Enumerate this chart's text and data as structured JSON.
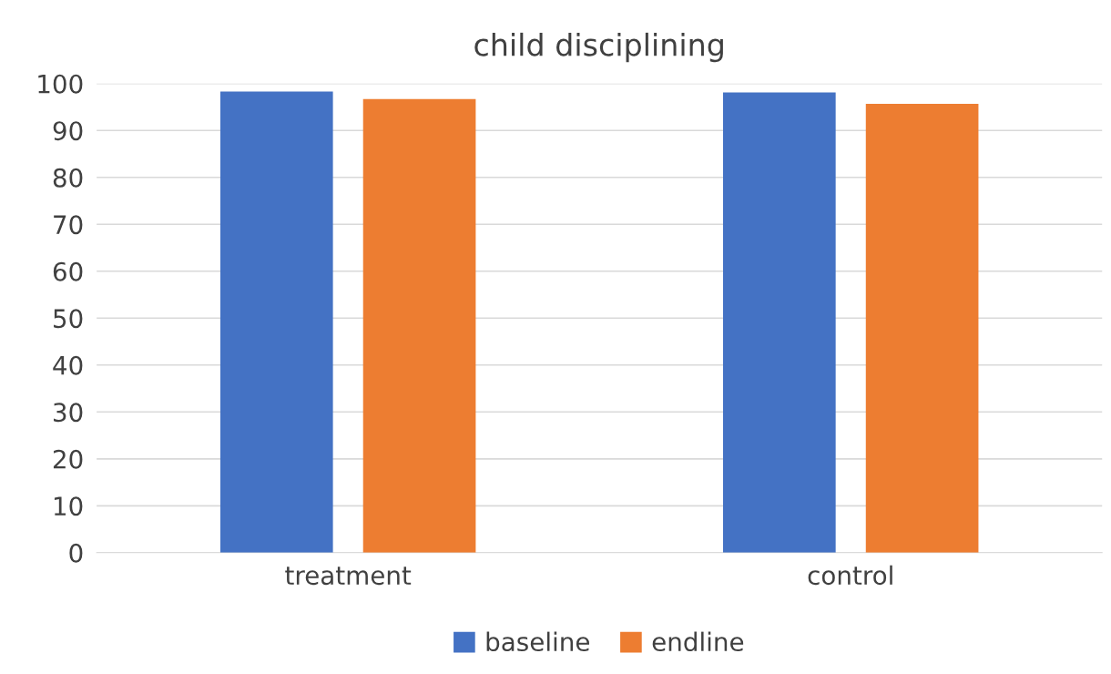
{
  "chart_data": {
    "type": "bar",
    "title": "child disciplining",
    "categories": [
      "treatment",
      "control"
    ],
    "series": [
      {
        "name": "baseline",
        "color": "#4472c4",
        "values": [
          98.3,
          98.1
        ]
      },
      {
        "name": "endline",
        "color": "#ed7d31",
        "values": [
          96.7,
          95.7
        ]
      }
    ],
    "ylim": [
      0,
      100
    ],
    "yticks": [
      0,
      10,
      20,
      30,
      40,
      50,
      60,
      70,
      80,
      90,
      100
    ],
    "grid": "y",
    "legend": "bottom"
  }
}
